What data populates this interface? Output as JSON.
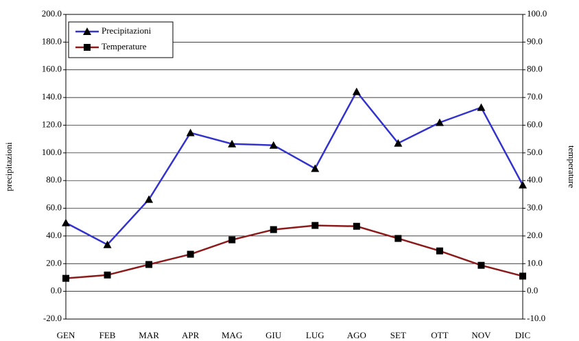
{
  "chart_data": {
    "type": "line",
    "categories": [
      "GEN",
      "FEB",
      "MAR",
      "APR",
      "MAG",
      "GIU",
      "LUG",
      "AGO",
      "SET",
      "OTT",
      "NOV",
      "DIC"
    ],
    "series": [
      {
        "name": "Precipitazioni",
        "color": "#3333cc",
        "marker": "triangle",
        "axis": "y",
        "values": [
          49.5,
          33.7,
          66.4,
          114.5,
          106.5,
          105.5,
          88.7,
          144.2,
          107,
          121.9,
          132.8,
          76.8
        ]
      },
      {
        "name": "Temperature",
        "color": "#8b1a1a",
        "marker": "square",
        "axis": "y2",
        "values": [
          4.7,
          5.9,
          9.7,
          13.4,
          18.6,
          22.3,
          23.8,
          23.5,
          19.1,
          14.6,
          9.4,
          5.5
        ]
      }
    ],
    "ylabel": "precipitazioni",
    "y2label": "temperature",
    "ylim": [
      -20,
      200
    ],
    "yticks": [
      {
        "value": -20,
        "label": "-20.0"
      },
      {
        "value": 0,
        "label": "0.0"
      },
      {
        "value": 20,
        "label": "20.0"
      },
      {
        "value": 40,
        "label": "40.0"
      },
      {
        "value": 60,
        "label": "60.0"
      },
      {
        "value": 80,
        "label": "80.0"
      },
      {
        "value": 100,
        "label": "100.0"
      },
      {
        "value": 120,
        "label": "120.0"
      },
      {
        "value": 140,
        "label": "140.0"
      },
      {
        "value": 160,
        "label": "160.0"
      },
      {
        "value": 180,
        "label": "180.0"
      },
      {
        "value": 200,
        "label": "200.0"
      }
    ],
    "y2lim": [
      -10,
      100
    ],
    "y2ticks": [
      {
        "value": -10,
        "label": "-10.0"
      },
      {
        "value": 0,
        "label": "0.0"
      },
      {
        "value": 10,
        "label": "10.0"
      },
      {
        "value": 20,
        "label": "20.0"
      },
      {
        "value": 30,
        "label": "30.0"
      },
      {
        "value": 40,
        "label": "40.0"
      },
      {
        "value": 50,
        "label": "50.0"
      },
      {
        "value": 60,
        "label": "60.0"
      },
      {
        "value": 70,
        "label": "70.0"
      },
      {
        "value": 80,
        "label": "80.0"
      },
      {
        "value": 90,
        "label": "90.0"
      },
      {
        "value": 100,
        "label": "100.0"
      }
    ],
    "grid": true,
    "legend": "upper left"
  }
}
